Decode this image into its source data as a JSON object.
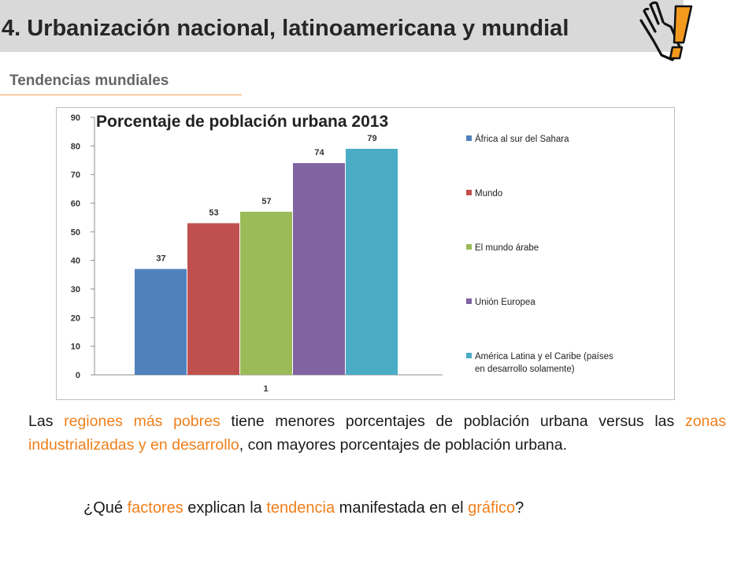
{
  "header": {
    "title": "4. Urbanización nacional, latinoamericana y  mundial"
  },
  "subtitle": "Tendencias mundiales",
  "paragraph": {
    "p1": "Las ",
    "h1": "regiones más pobres",
    "p2": " tiene menores porcentajes de población urbana versus las ",
    "h2": "zonas industrializadas y en desarrollo",
    "p3": ", con mayores porcentajes de población urbana."
  },
  "question": {
    "q1": "¿Qué ",
    "h1": "factores",
    "q2": " explican la ",
    "h2": "tendencia",
    "q3": " manifestada en el ",
    "h3": "gráfico",
    "q4": "?"
  },
  "colors": {
    "highlight": "#f07f1a",
    "header_bg": "#d9d9d9",
    "series": [
      "#4f81bd",
      "#c0504d",
      "#9bbb59",
      "#8064a2",
      "#4bacc6"
    ]
  },
  "icons": {
    "header": "hand-exclamation-icon"
  },
  "chart_data": {
    "type": "bar",
    "title": "Porcentaje de población urbana 2013",
    "categories": [
      "1"
    ],
    "series": [
      {
        "name": "África al sur del Sahara",
        "values": [
          37
        ]
      },
      {
        "name": "Mundo",
        "values": [
          53
        ]
      },
      {
        "name": "El mundo árabe",
        "values": [
          57
        ]
      },
      {
        "name": "Unión Europea",
        "values": [
          74
        ]
      },
      {
        "name": "América Latina y el Caribe (países en desarrollo solamente)",
        "values": [
          79
        ]
      }
    ],
    "legend_lines": [
      [
        "África al sur del Sahara"
      ],
      [
        "Mundo"
      ],
      [
        "El mundo árabe"
      ],
      [
        "Unión Europea"
      ],
      [
        "América Latina y el Caribe (países",
        "en desarrollo solamente)"
      ]
    ],
    "yticks": [
      "0",
      "10",
      "20",
      "30",
      "40",
      "50",
      "60",
      "70",
      "80",
      "90"
    ],
    "ylim": [
      0,
      90
    ],
    "xlabel": "",
    "ylabel": "",
    "grid": false,
    "data_labels": true,
    "legend_position": "right"
  }
}
